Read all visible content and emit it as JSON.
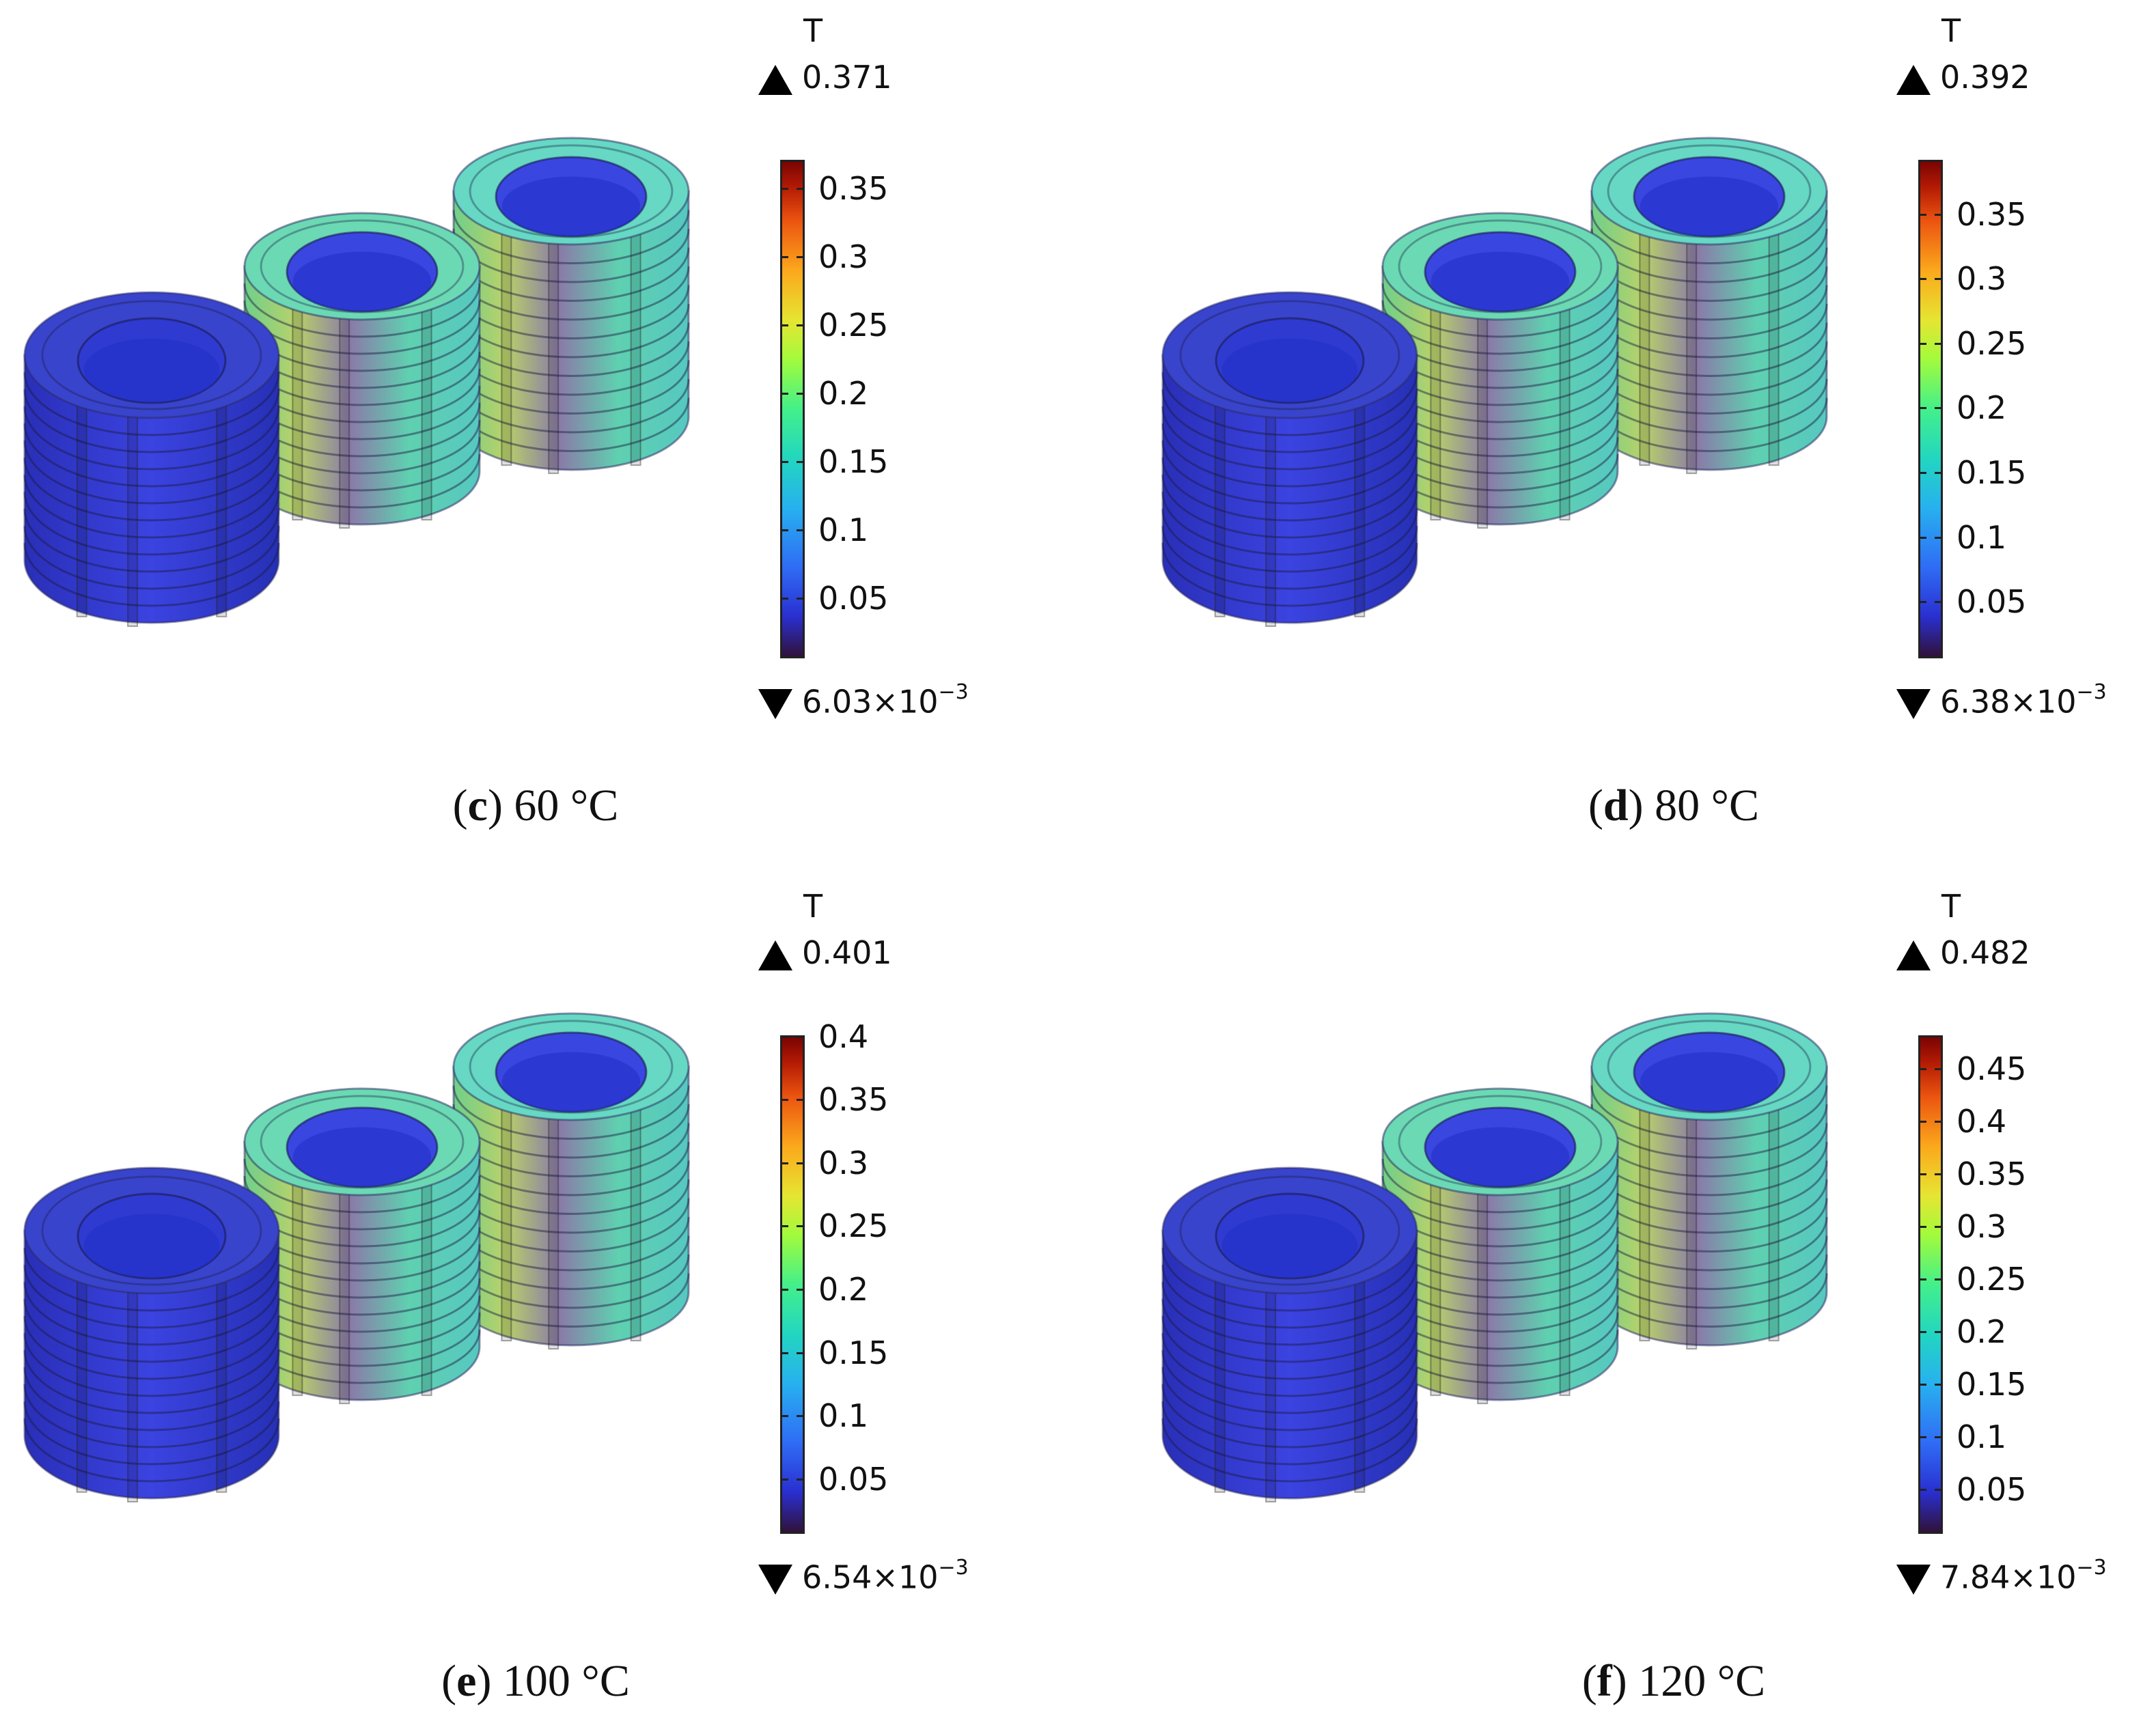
{
  "panels": [
    {
      "id": "c",
      "letter": "c",
      "temp": "60 °C",
      "unit": "T",
      "max": "0.371",
      "min_mant": "6.03×10",
      "min_exp": "−3",
      "max_value": 0.371,
      "min_value": 0.00603,
      "ticks": [
        "0.35",
        "0.3",
        "0.25",
        "0.2",
        "0.15",
        "0.1",
        "0.05"
      ],
      "tick_values": [
        0.35,
        0.3,
        0.25,
        0.2,
        0.15,
        0.1,
        0.05
      ]
    },
    {
      "id": "d",
      "letter": "d",
      "temp": "80 °C",
      "unit": "T",
      "max": "0.392",
      "min_mant": "6.38×10",
      "min_exp": "−3",
      "max_value": 0.392,
      "min_value": 0.00638,
      "ticks": [
        "0.35",
        "0.3",
        "0.25",
        "0.2",
        "0.15",
        "0.1",
        "0.05"
      ],
      "tick_values": [
        0.35,
        0.3,
        0.25,
        0.2,
        0.15,
        0.1,
        0.05
      ]
    },
    {
      "id": "e",
      "letter": "e",
      "temp": "100 °C",
      "unit": "T",
      "max": "0.401",
      "min_mant": "6.54×10",
      "min_exp": "−3",
      "max_value": 0.401,
      "min_value": 0.00654,
      "ticks": [
        "0.4",
        "0.35",
        "0.3",
        "0.25",
        "0.2",
        "0.15",
        "0.1",
        "0.05"
      ],
      "tick_values": [
        0.4,
        0.35,
        0.3,
        0.25,
        0.2,
        0.15,
        0.1,
        0.05
      ]
    },
    {
      "id": "f",
      "letter": "f",
      "temp": "120 °C",
      "unit": "T",
      "max": "0.482",
      "min_mant": "7.84×10",
      "min_exp": "−3",
      "max_value": 0.482,
      "min_value": 0.00784,
      "ticks": [
        "0.45",
        "0.4",
        "0.35",
        "0.3",
        "0.25",
        "0.2",
        "0.15",
        "0.1",
        "0.05"
      ],
      "tick_values": [
        0.45,
        0.4,
        0.35,
        0.3,
        0.25,
        0.2,
        0.15,
        0.1,
        0.05
      ]
    }
  ]
}
